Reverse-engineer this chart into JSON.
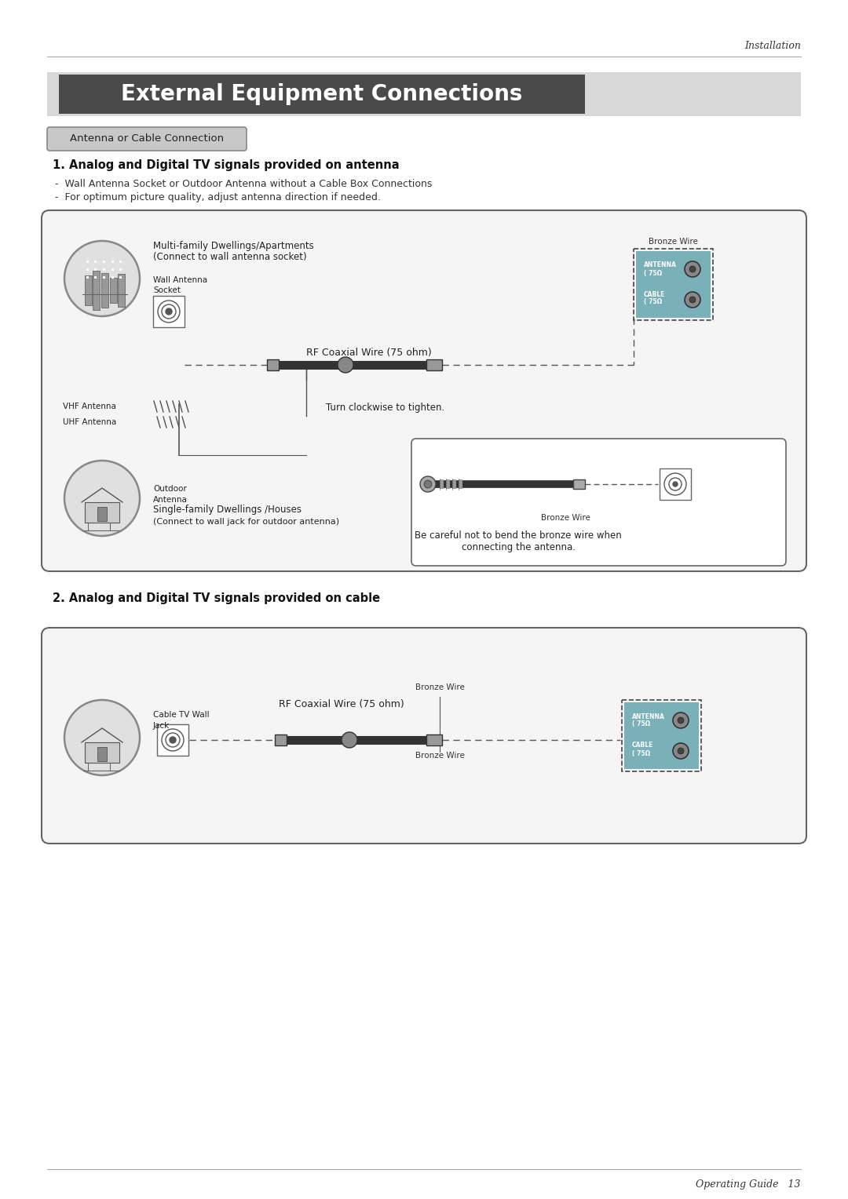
{
  "page_bg": "#ffffff",
  "top_label": "Installation",
  "title_banner_text": "External Equipment Connections",
  "title_banner_bg": "#4a4a4a",
  "title_banner_light_bg": "#d8d8d8",
  "section_label": "Antenna or Cable Connection",
  "section_label_bg": "#c0c0c0",
  "heading1": "1. Analog and Digital TV signals provided on antenna",
  "bullet1": "-  Wall Antenna Socket or Outdoor Antenna without a Cable Box Connections",
  "bullet2": "-  For optimum picture quality, adjust antenna direction if needed.",
  "heading2": "2. Analog and Digital TV signals provided on cable",
  "bottom_label": "Operating Guide   13",
  "d1": {
    "multi_family_line1": "Multi-family Dwellings/Apartments",
    "multi_family_line2": "(Connect to wall antenna socket)",
    "wall_antenna_label": "Wall Antenna\nSocket",
    "bronze_wire1": "Bronze Wire",
    "rf_coaxial": "RF Coaxial Wire (75 ohm)",
    "vhf_antenna": "VHF Antenna",
    "uhf_antenna": "UHF Antenna",
    "turn_clockwise": "Turn clockwise to tighten.",
    "outdoor_antenna": "Outdoor\nAntenna",
    "single_family_line1": "Single-family Dwellings /Houses",
    "single_family_line2": "(Connect to wall jack for outdoor antenna)",
    "bronze_wire2": "Bronze Wire",
    "be_careful_line1": "Be careful not to bend the bronze wire when",
    "be_careful_line2": "connecting the antenna.",
    "antenna_75_line1": "ANTENNA",
    "antenna_75_line2": "( 75Ω",
    "cable_75_line1": "CABLE",
    "cable_75_line2": "( 75Ω"
  },
  "d2": {
    "cable_tv_wall": "Cable TV Wall\nJack",
    "bronze_wire_top": "Bronze Wire",
    "rf_coaxial": "RF Coaxial Wire (75 ohm)",
    "bronze_wire_bottom": "Bronze Wire",
    "antenna_75_line1": "ANTENNA",
    "antenna_75_line2": "( 75Ω",
    "cable_75_line1": "CABLE",
    "cable_75_line2": "( 75Ω"
  }
}
